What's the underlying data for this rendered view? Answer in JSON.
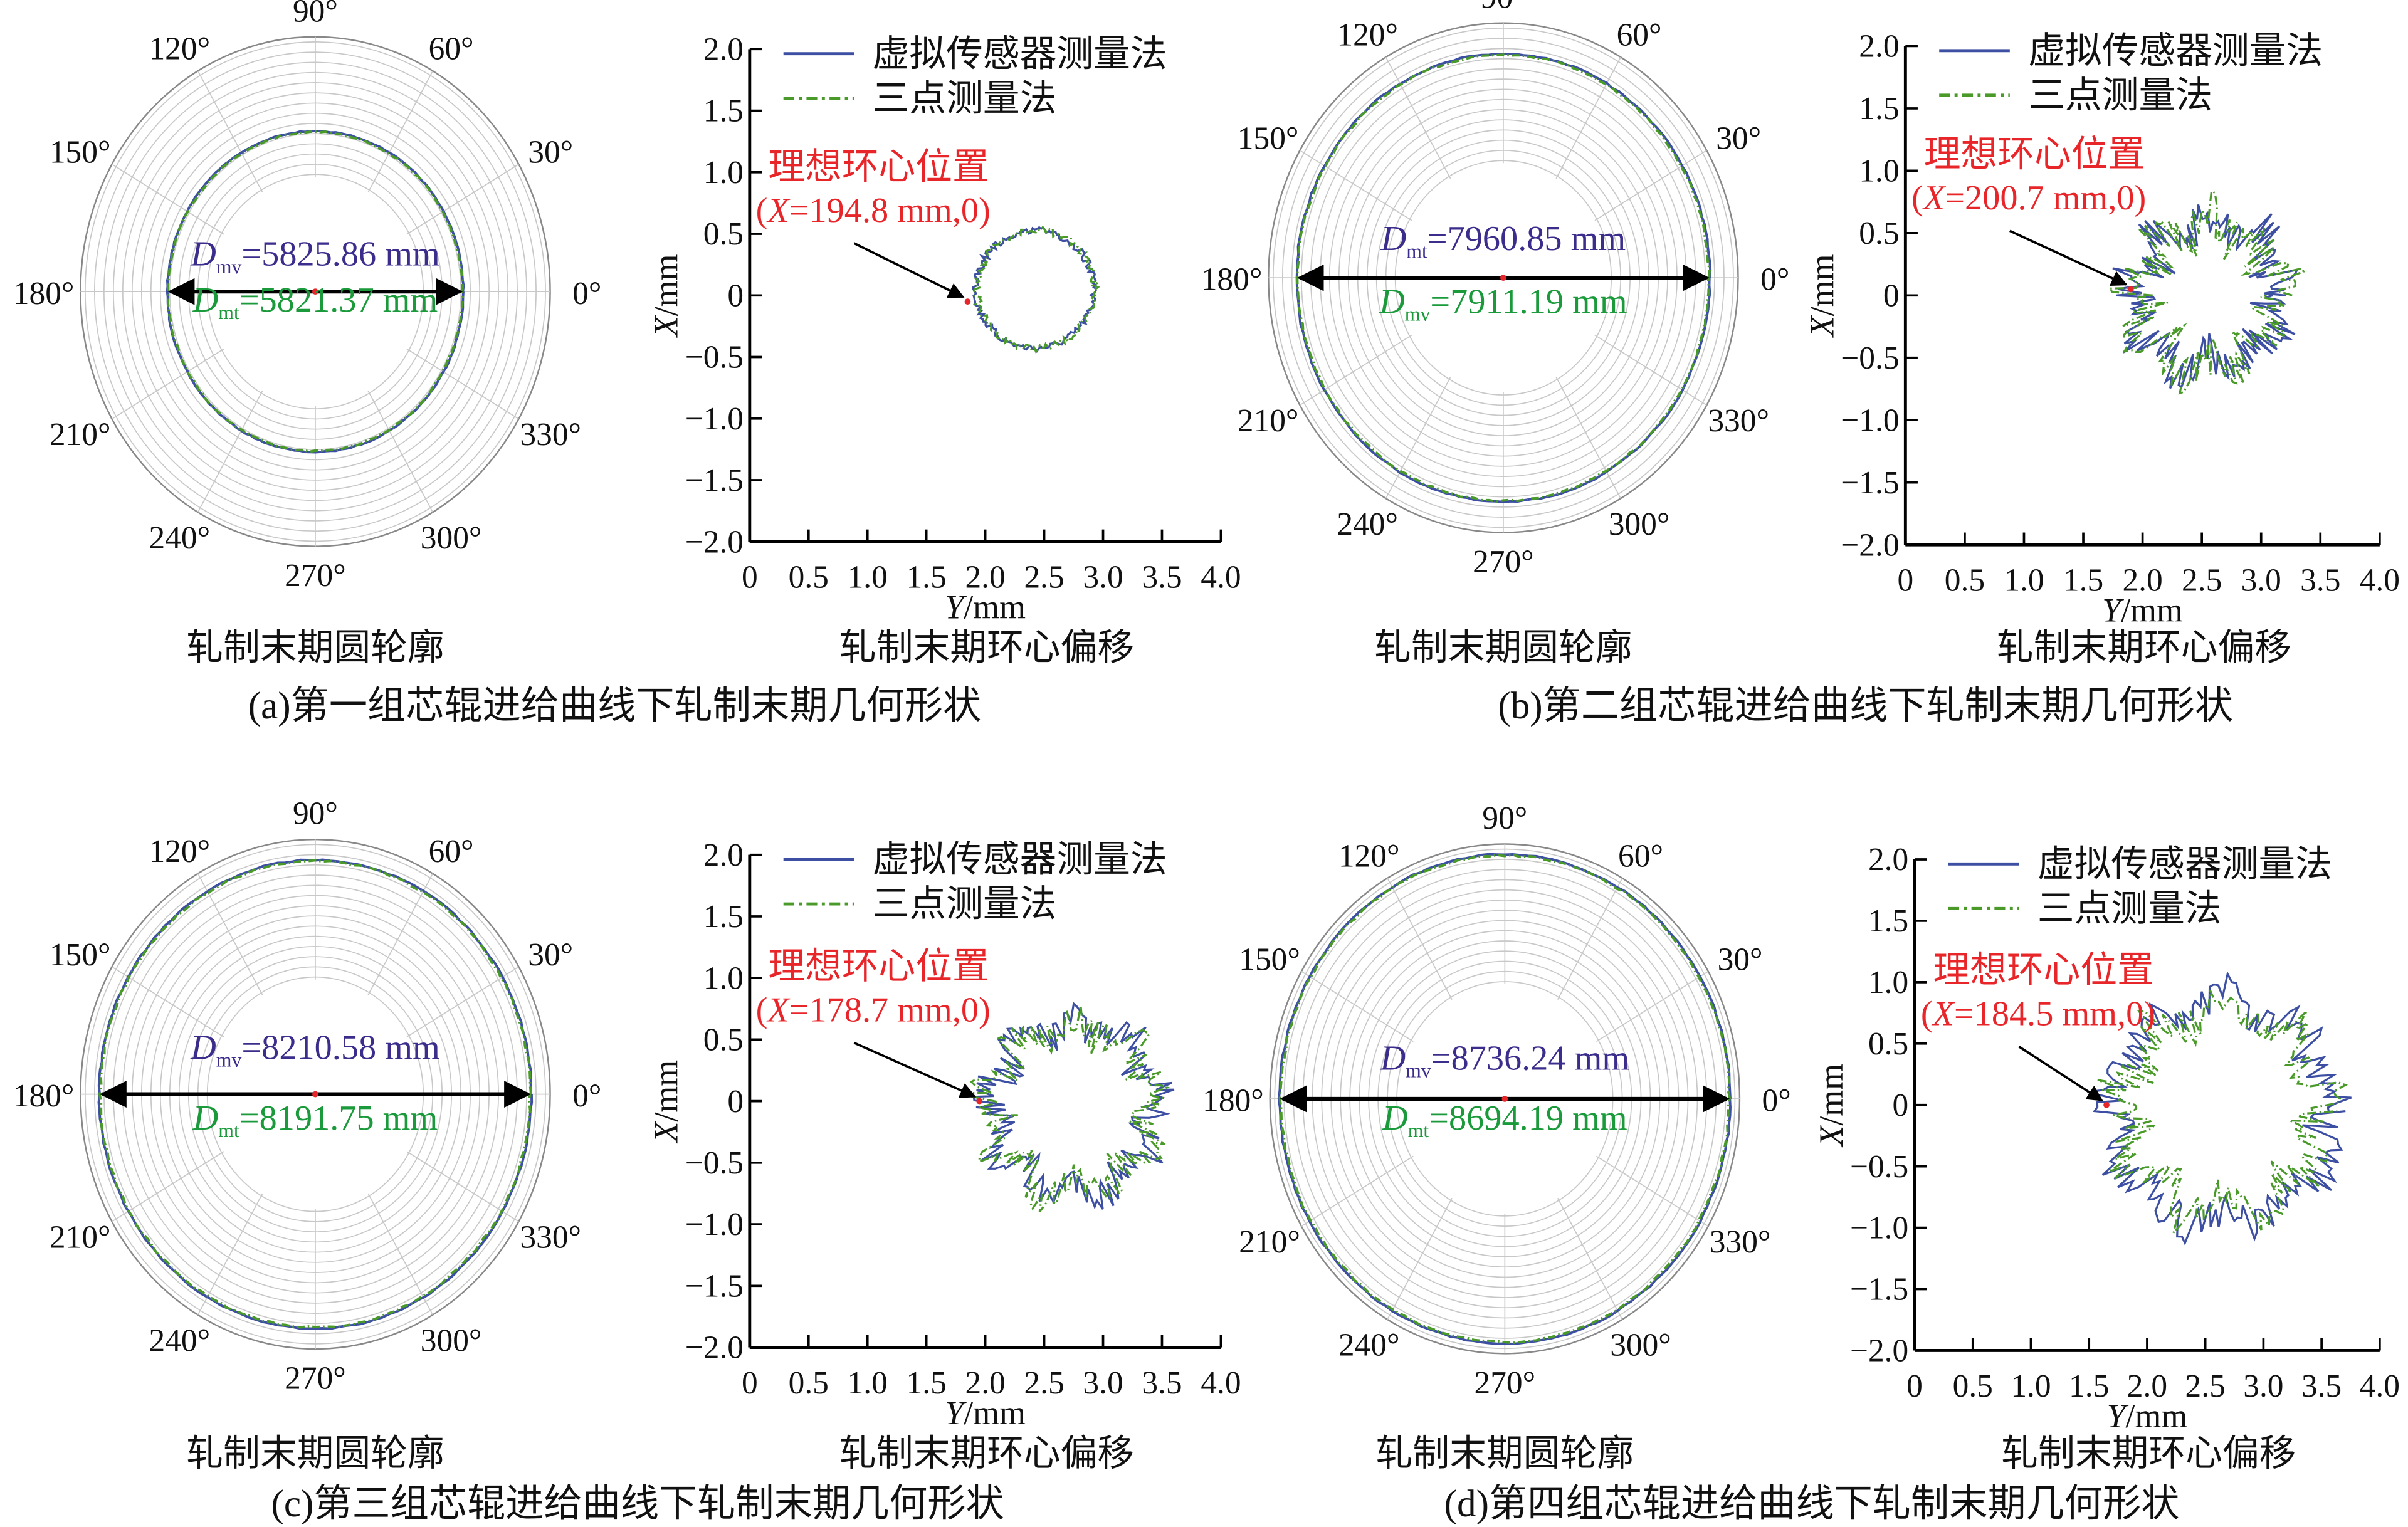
{
  "chart_data": [
    {
      "id": "a",
      "caption": "(a)第一组芯辊进给曲线下轧制末期几何形状",
      "polar": {
        "type": "polar-line",
        "title": "轧制末期圆轮廓",
        "angle_labels": [
          "0°",
          "30°",
          "60°",
          "90°",
          "120°",
          "150°",
          "180°",
          "210°",
          "240°",
          "270°",
          "300°",
          "330°"
        ],
        "annotations": [
          {
            "sym": "D",
            "sub": "mv",
            "value": "=5825.86 mm",
            "color": "#3a2d8c"
          },
          {
            "sym": "D",
            "sub": "mt",
            "value": "=5821.37 mm",
            "color": "#1a9a3a"
          }
        ]
      },
      "offset": {
        "type": "line",
        "title": "轧制末期环心偏移",
        "xlabel_var": "Y",
        "xlabel_unit": "/mm",
        "ylabel_var": "X",
        "ylabel_unit": "/mm",
        "xlim": [
          0,
          4.0
        ],
        "ylim": [
          -2.0,
          2.0
        ],
        "xticks": [
          "0",
          "0.5",
          "1.0",
          "1.5",
          "2.0",
          "2.5",
          "3.0",
          "3.5",
          "4.0"
        ],
        "yticks": [
          "2.0",
          "1.5",
          "1.0",
          "0.5",
          "0",
          "−0.5",
          "−1.0",
          "−1.5",
          "−2.0"
        ],
        "legend": [
          "虚拟传感器测量法",
          "三点测量法"
        ],
        "legend_position": "top-right",
        "ideal_label": "理想环心位置",
        "ideal_coord": {
          "prefix": "(",
          "var": "X",
          "suffix": "=194.8 mm,0)"
        },
        "ideal_point": [
          1.85,
          -0.05
        ],
        "series": [
          {
            "name": "虚拟传感器测量法",
            "center": [
              2.42,
              0.05
            ],
            "mean_radius": 0.5,
            "roughness": 0.03
          },
          {
            "name": "三点测量法",
            "center": [
              2.43,
              0.05
            ],
            "mean_radius": 0.5,
            "roughness": 0.03
          }
        ]
      }
    },
    {
      "id": "b",
      "caption": "(b)第二组芯辊进给曲线下轧制末期几何形状",
      "polar": {
        "type": "polar-line",
        "title": "轧制末期圆轮廓",
        "angle_labels": [
          "0°",
          "30°",
          "60°",
          "90°",
          "120°",
          "150°",
          "180°",
          "210°",
          "240°",
          "270°",
          "300°",
          "330°"
        ],
        "annotations": [
          {
            "sym": "D",
            "sub": "mt",
            "value": "=7960.85 mm",
            "color": "#3a2d8c"
          },
          {
            "sym": "D",
            "sub": "mv",
            "value": "=7911.19 mm",
            "color": "#1a9a3a"
          }
        ]
      },
      "offset": {
        "type": "line",
        "title": "轧制末期环心偏移",
        "xlabel_var": "Y",
        "xlabel_unit": "/mm",
        "ylabel_var": "X",
        "ylabel_unit": "/mm",
        "xlim": [
          0,
          4.0
        ],
        "ylim": [
          -2.0,
          2.0
        ],
        "xticks": [
          "0",
          "0.5",
          "1.0",
          "1.5",
          "2.0",
          "2.5",
          "3.0",
          "3.5",
          "4.0"
        ],
        "yticks": [
          "2.0",
          "1.5",
          "1.0",
          "0.5",
          "0",
          "−0.5",
          "−1.0",
          "−1.5",
          "−2.0"
        ],
        "legend": [
          "虚拟传感器测量法",
          "三点测量法"
        ],
        "legend_position": "top-right",
        "ideal_label": "理想环心位置",
        "ideal_coord": {
          "prefix": "(",
          "var": "X",
          "suffix": "=200.7 mm,0)"
        },
        "ideal_point": [
          1.9,
          0.05
        ],
        "series": [
          {
            "name": "虚拟传感器测量法",
            "center": [
              2.55,
              0.0
            ],
            "mean_radius": 0.6,
            "roughness": 0.18
          },
          {
            "name": "三点测量法",
            "center": [
              2.55,
              0.0
            ],
            "mean_radius": 0.6,
            "roughness": 0.18
          }
        ]
      }
    },
    {
      "id": "c",
      "caption": "(c)第三组芯辊进给曲线下轧制末期几何形状",
      "polar": {
        "type": "polar-line",
        "title": "轧制末期圆轮廓",
        "angle_labels": [
          "0°",
          "30°",
          "60°",
          "90°",
          "120°",
          "150°",
          "180°",
          "210°",
          "240°",
          "270°",
          "300°",
          "330°"
        ],
        "annotations": [
          {
            "sym": "D",
            "sub": "mv",
            "value": "=8210.58 mm",
            "color": "#3a2d8c"
          },
          {
            "sym": "D",
            "sub": "mt",
            "value": "=8191.75 mm",
            "color": "#1a9a3a"
          }
        ]
      },
      "offset": {
        "type": "line",
        "title": "轧制末期环心偏移",
        "xlabel_var": "Y",
        "xlabel_unit": "/mm",
        "ylabel_var": "X",
        "ylabel_unit": "/mm",
        "xlim": [
          0,
          4.0
        ],
        "ylim": [
          -2.0,
          2.0
        ],
        "xticks": [
          "0",
          "0.5",
          "1.0",
          "1.5",
          "2.0",
          "2.5",
          "3.0",
          "3.5",
          "4.0"
        ],
        "yticks": [
          "2.0",
          "1.5",
          "1.0",
          "0.5",
          "0",
          "−0.5",
          "−1.0",
          "−1.5",
          "−2.0"
        ],
        "legend": [
          "虚拟传感器测量法",
          "三点测量法"
        ],
        "legend_position": "top-right",
        "ideal_label": "理想环心位置",
        "ideal_coord": {
          "prefix": "(",
          "var": "X",
          "suffix": "=178.7 mm,0)"
        },
        "ideal_point": [
          1.95,
          0.0
        ],
        "series": [
          {
            "name": "虚拟传感器测量法",
            "center": [
              2.75,
              -0.05
            ],
            "mean_radius": 0.7,
            "roughness": 0.15
          },
          {
            "name": "三点测量法",
            "center": [
              2.75,
              -0.05
            ],
            "mean_radius": 0.7,
            "roughness": 0.15
          }
        ]
      }
    },
    {
      "id": "d",
      "caption": "(d)第四组芯辊进给曲线下轧制末期几何形状",
      "polar": {
        "type": "polar-line",
        "title": "轧制末期圆轮廓",
        "angle_labels": [
          "0°",
          "30°",
          "60°",
          "90°",
          "120°",
          "150°",
          "180°",
          "210°",
          "240°",
          "270°",
          "300°",
          "330°"
        ],
        "annotations": [
          {
            "sym": "D",
            "sub": "mv",
            "value": "=8736.24 mm",
            "color": "#3a2d8c"
          },
          {
            "sym": "D",
            "sub": "mt",
            "value": "=8694.19 mm",
            "color": "#1a9a3a"
          }
        ]
      },
      "offset": {
        "type": "line",
        "title": "轧制末期环心偏移",
        "xlabel_var": "Y",
        "xlabel_unit": "/mm",
        "ylabel_var": "X",
        "ylabel_unit": "/mm",
        "xlim": [
          0,
          4.0
        ],
        "ylim": [
          -2.0,
          2.0
        ],
        "xticks": [
          "0",
          "0.5",
          "1.0",
          "1.5",
          "2.0",
          "2.5",
          "3.0",
          "3.5",
          "4.0"
        ],
        "yticks": [
          "2.0",
          "1.5",
          "1.0",
          "0.5",
          "0",
          "−0.5",
          "−1.0",
          "−1.5",
          "−2.0"
        ],
        "legend": [
          "虚拟传感器测量法",
          "三点测量法"
        ],
        "legend_position": "top-right",
        "ideal_label": "理想环心位置",
        "ideal_coord": {
          "prefix": "(",
          "var": "X",
          "suffix": "=184.5 mm,0)"
        },
        "ideal_point": [
          1.65,
          0.0
        ],
        "series": [
          {
            "name": "虚拟传感器测量法",
            "center": [
              2.65,
              -0.05
            ],
            "mean_radius": 0.95,
            "roughness": 0.16
          },
          {
            "name": "三点测量法",
            "center": [
              2.65,
              -0.05
            ],
            "mean_radius": 0.85,
            "roughness": 0.18
          }
        ]
      }
    }
  ],
  "colors": {
    "virtual": "#3d4fa3",
    "three_point": "#4a9a2a",
    "ideal": "#e8262a",
    "grid": "#c8c8c8"
  }
}
